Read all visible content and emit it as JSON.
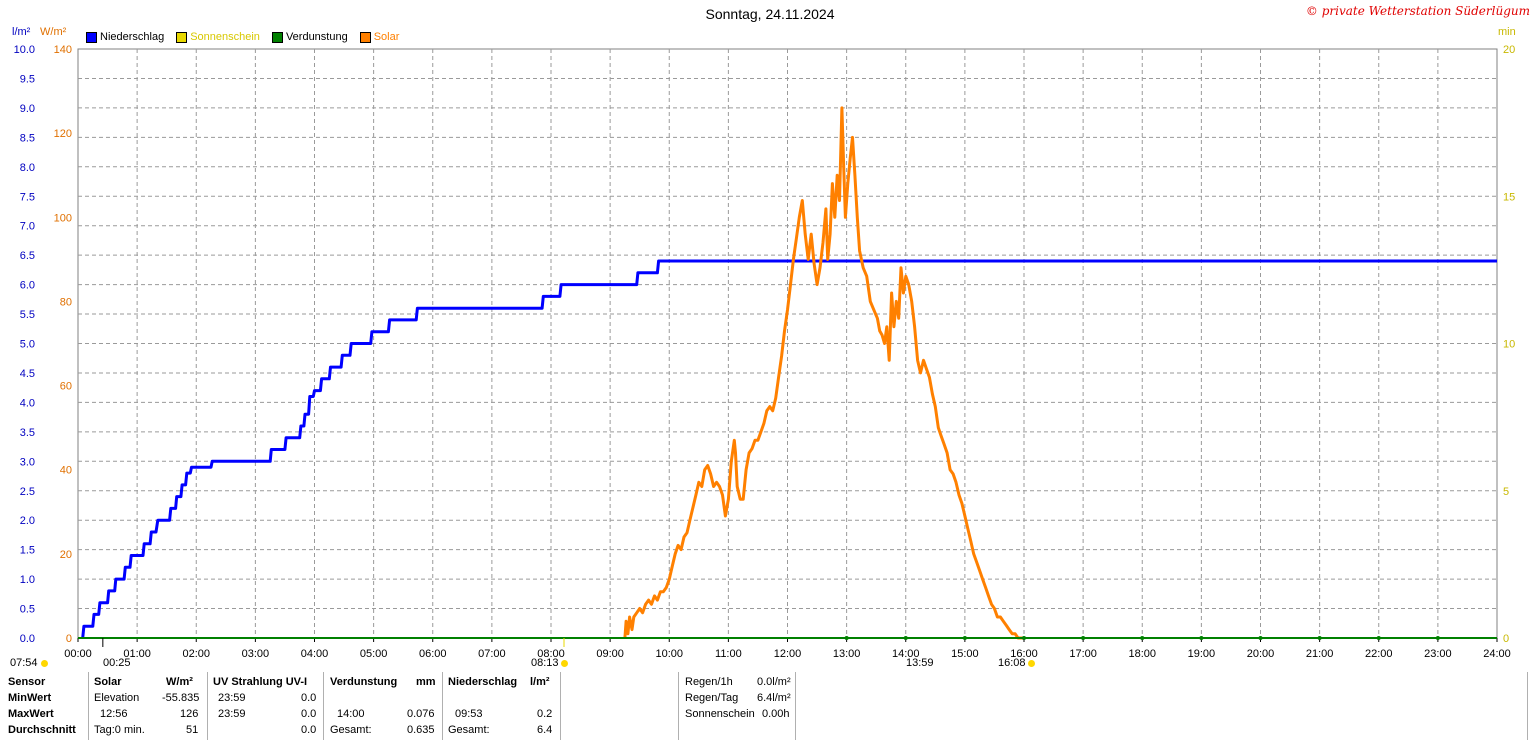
{
  "title": "Sonntag, 24.11.2024",
  "copyright": "© private Wetterstation Süderlügum",
  "units": {
    "left1": "l/m²",
    "left2": "W/m²",
    "right": "min"
  },
  "legend": [
    {
      "label": "Niederschlag",
      "color": "#0000ff",
      "text_color": "#000000"
    },
    {
      "label": "Sonnenschein",
      "color": "#e8d800",
      "text_color": "#d8c800"
    },
    {
      "label": "Verdunstung",
      "color": "#008000",
      "text_color": "#000000"
    },
    {
      "label": "Solar",
      "color": "#ff8000",
      "text_color": "#ff8000"
    }
  ],
  "markers": {
    "sunrise": "07:54",
    "sunset_time": "16:08",
    "m1": "00:25",
    "m2": "08:13",
    "m3": "13:59",
    "m4": "16:08"
  },
  "chart_data": {
    "type": "line",
    "title": "Sonntag, 24.11.2024",
    "x_ticks": [
      "00:00",
      "01:00",
      "02:00",
      "03:00",
      "04:00",
      "05:00",
      "06:00",
      "07:00",
      "08:00",
      "09:00",
      "10:00",
      "11:00",
      "12:00",
      "13:00",
      "14:00",
      "15:00",
      "16:00",
      "17:00",
      "18:00",
      "19:00",
      "20:00",
      "21:00",
      "22:00",
      "23:00",
      "24:00"
    ],
    "y_left_precip": {
      "ticks": [
        "0.0",
        "0.5",
        "1.0",
        "1.5",
        "2.0",
        "2.5",
        "3.0",
        "3.5",
        "4.0",
        "4.5",
        "5.0",
        "5.5",
        "6.0",
        "6.5",
        "7.0",
        "7.5",
        "8.0",
        "8.5",
        "9.0",
        "9.5",
        "10.0"
      ],
      "range": [
        0,
        10
      ]
    },
    "y_left_solar": {
      "ticks": [
        "0",
        "20",
        "40",
        "60",
        "80",
        "100",
        "120",
        "140"
      ],
      "range": [
        0,
        140
      ]
    },
    "y_right_min": {
      "ticks": [
        "0",
        "5",
        "10",
        "15",
        "20"
      ],
      "range": [
        0,
        20
      ]
    },
    "grid": true,
    "series": [
      {
        "name": "Niederschlag",
        "color": "#0000ff",
        "axis": "precip",
        "points": [
          [
            0.08,
            0.0
          ],
          [
            0.1,
            0.2
          ],
          [
            0.25,
            0.2
          ],
          [
            0.27,
            0.4
          ],
          [
            0.35,
            0.4
          ],
          [
            0.37,
            0.6
          ],
          [
            0.5,
            0.6
          ],
          [
            0.52,
            0.8
          ],
          [
            0.62,
            0.8
          ],
          [
            0.64,
            1.0
          ],
          [
            0.78,
            1.0
          ],
          [
            0.8,
            1.2
          ],
          [
            0.88,
            1.2
          ],
          [
            0.9,
            1.4
          ],
          [
            1.1,
            1.4
          ],
          [
            1.12,
            1.6
          ],
          [
            1.22,
            1.6
          ],
          [
            1.24,
            1.8
          ],
          [
            1.32,
            1.8
          ],
          [
            1.35,
            2.0
          ],
          [
            1.55,
            2.0
          ],
          [
            1.57,
            2.2
          ],
          [
            1.65,
            2.2
          ],
          [
            1.67,
            2.4
          ],
          [
            1.74,
            2.4
          ],
          [
            1.76,
            2.6
          ],
          [
            1.82,
            2.6
          ],
          [
            1.84,
            2.8
          ],
          [
            1.9,
            2.8
          ],
          [
            1.92,
            2.9
          ],
          [
            2.25,
            2.9
          ],
          [
            2.27,
            3.0
          ],
          [
            3.25,
            3.0
          ],
          [
            3.27,
            3.2
          ],
          [
            3.5,
            3.2
          ],
          [
            3.52,
            3.4
          ],
          [
            3.75,
            3.4
          ],
          [
            3.77,
            3.6
          ],
          [
            3.82,
            3.6
          ],
          [
            3.84,
            3.8
          ],
          [
            3.9,
            3.8
          ],
          [
            3.92,
            4.1
          ],
          [
            3.98,
            4.1
          ],
          [
            4.0,
            4.2
          ],
          [
            4.1,
            4.2
          ],
          [
            4.12,
            4.4
          ],
          [
            4.25,
            4.4
          ],
          [
            4.27,
            4.6
          ],
          [
            4.45,
            4.6
          ],
          [
            4.47,
            4.8
          ],
          [
            4.6,
            4.8
          ],
          [
            4.62,
            5.0
          ],
          [
            4.95,
            5.0
          ],
          [
            4.97,
            5.2
          ],
          [
            5.25,
            5.2
          ],
          [
            5.27,
            5.4
          ],
          [
            5.72,
            5.4
          ],
          [
            5.74,
            5.6
          ],
          [
            7.85,
            5.6
          ],
          [
            7.87,
            5.8
          ],
          [
            8.15,
            5.8
          ],
          [
            8.17,
            6.0
          ],
          [
            9.45,
            6.0
          ],
          [
            9.47,
            6.2
          ],
          [
            9.8,
            6.2
          ],
          [
            9.82,
            6.4
          ],
          [
            24.0,
            6.4
          ]
        ]
      },
      {
        "name": "Solar",
        "color": "#ff8000",
        "axis": "solar",
        "points": [
          [
            9.25,
            0
          ],
          [
            9.27,
            4
          ],
          [
            9.3,
            1
          ],
          [
            9.33,
            5
          ],
          [
            9.37,
            2
          ],
          [
            9.4,
            5
          ],
          [
            9.45,
            6
          ],
          [
            9.5,
            7
          ],
          [
            9.55,
            6
          ],
          [
            9.6,
            8
          ],
          [
            9.65,
            9
          ],
          [
            9.7,
            8
          ],
          [
            9.75,
            10
          ],
          [
            9.8,
            9
          ],
          [
            9.85,
            11
          ],
          [
            9.9,
            11
          ],
          [
            9.95,
            12
          ],
          [
            10.0,
            14
          ],
          [
            10.05,
            17
          ],
          [
            10.1,
            20
          ],
          [
            10.15,
            22
          ],
          [
            10.2,
            21
          ],
          [
            10.25,
            24
          ],
          [
            10.3,
            25
          ],
          [
            10.35,
            28
          ],
          [
            10.4,
            31
          ],
          [
            10.45,
            34
          ],
          [
            10.5,
            37
          ],
          [
            10.55,
            36
          ],
          [
            10.6,
            40
          ],
          [
            10.65,
            41
          ],
          [
            10.7,
            39
          ],
          [
            10.75,
            36
          ],
          [
            10.8,
            37
          ],
          [
            10.85,
            36
          ],
          [
            10.9,
            34
          ],
          [
            10.95,
            29
          ],
          [
            11.0,
            33
          ],
          [
            11.05,
            42
          ],
          [
            11.1,
            47
          ],
          [
            11.12,
            44
          ],
          [
            11.15,
            36
          ],
          [
            11.2,
            33
          ],
          [
            11.25,
            33
          ],
          [
            11.3,
            40
          ],
          [
            11.35,
            44
          ],
          [
            11.4,
            45
          ],
          [
            11.45,
            47
          ],
          [
            11.5,
            47
          ],
          [
            11.55,
            49
          ],
          [
            11.6,
            51
          ],
          [
            11.65,
            54
          ],
          [
            11.7,
            55
          ],
          [
            11.75,
            54
          ],
          [
            11.8,
            57
          ],
          [
            11.85,
            62
          ],
          [
            11.9,
            67
          ],
          [
            11.95,
            73
          ],
          [
            12.0,
            78
          ],
          [
            12.05,
            84
          ],
          [
            12.1,
            90
          ],
          [
            12.15,
            95
          ],
          [
            12.2,
            100
          ],
          [
            12.25,
            104
          ],
          [
            12.3,
            96
          ],
          [
            12.35,
            90
          ],
          [
            12.4,
            96
          ],
          [
            12.45,
            89
          ],
          [
            12.5,
            84
          ],
          [
            12.55,
            88
          ],
          [
            12.6,
            94
          ],
          [
            12.65,
            102
          ],
          [
            12.68,
            90
          ],
          [
            12.72,
            96
          ],
          [
            12.76,
            108
          ],
          [
            12.8,
            100
          ],
          [
            12.84,
            110
          ],
          [
            12.88,
            104
          ],
          [
            12.92,
            126
          ],
          [
            12.95,
            112
          ],
          [
            12.98,
            100
          ],
          [
            13.02,
            108
          ],
          [
            13.06,
            114
          ],
          [
            13.1,
            119
          ],
          [
            13.14,
            110
          ],
          [
            13.18,
            100
          ],
          [
            13.22,
            92
          ],
          [
            13.28,
            88
          ],
          [
            13.34,
            86
          ],
          [
            13.4,
            80
          ],
          [
            13.46,
            78
          ],
          [
            13.52,
            76
          ],
          [
            13.56,
            73
          ],
          [
            13.6,
            72
          ],
          [
            13.64,
            70
          ],
          [
            13.68,
            74
          ],
          [
            13.72,
            66
          ],
          [
            13.76,
            82
          ],
          [
            13.8,
            74
          ],
          [
            13.84,
            80
          ],
          [
            13.88,
            76
          ],
          [
            13.92,
            88
          ],
          [
            13.96,
            82
          ],
          [
            14.0,
            86
          ],
          [
            14.05,
            84
          ],
          [
            14.1,
            80
          ],
          [
            14.15,
            74
          ],
          [
            14.2,
            66
          ],
          [
            14.25,
            63
          ],
          [
            14.3,
            66
          ],
          [
            14.35,
            64
          ],
          [
            14.4,
            62
          ],
          [
            14.45,
            58
          ],
          [
            14.5,
            55
          ],
          [
            14.55,
            50
          ],
          [
            14.6,
            48
          ],
          [
            14.65,
            46
          ],
          [
            14.7,
            44
          ],
          [
            14.75,
            40
          ],
          [
            14.8,
            39
          ],
          [
            14.85,
            37
          ],
          [
            14.9,
            34
          ],
          [
            14.95,
            32
          ],
          [
            15.0,
            29
          ],
          [
            15.05,
            26
          ],
          [
            15.1,
            23
          ],
          [
            15.15,
            20
          ],
          [
            15.2,
            18
          ],
          [
            15.25,
            16
          ],
          [
            15.3,
            14
          ],
          [
            15.35,
            12
          ],
          [
            15.4,
            10
          ],
          [
            15.45,
            8
          ],
          [
            15.5,
            7
          ],
          [
            15.55,
            5
          ],
          [
            15.6,
            5
          ],
          [
            15.65,
            4
          ],
          [
            15.7,
            3
          ],
          [
            15.75,
            2
          ],
          [
            15.8,
            1
          ],
          [
            15.85,
            1
          ],
          [
            15.9,
            0
          ],
          [
            16.02,
            0
          ]
        ]
      },
      {
        "name": "Verdunstung",
        "color": "#008000",
        "axis": "solar",
        "points": [
          [
            0.0,
            0
          ],
          [
            24.0,
            0
          ]
        ]
      }
    ]
  },
  "table": {
    "col1": {
      "h": "Sensor",
      "r1": "MinWert",
      "r2": "MaxWert",
      "r3": "Durchschnitt"
    },
    "solar": {
      "h": "Solar",
      "unit": "W/m²",
      "r1a": "Elevation",
      "r1b": "-55.835",
      "r2a": "12:56",
      "r2b": "126",
      "r3a": "Tag:0 min.",
      "r3b": "51"
    },
    "uv": {
      "h": "UV Strahlung UV-I",
      "r1a": "23:59",
      "r1b": "0.0",
      "r2a": "23:59",
      "r2b": "0.0",
      "r3b": "0.0"
    },
    "verd": {
      "h": "Verdunstung",
      "unit": "mm",
      "r2a": "14:00",
      "r2b": "0.076",
      "r3a": "Gesamt:",
      "r3b": "0.635"
    },
    "nied": {
      "h": "Niederschlag",
      "unit": "l/m²",
      "r2a": "09:53",
      "r2b": "0.2",
      "r3a": "Gesamt:",
      "r3b": "6.4"
    },
    "summary": {
      "r0a": "Regen/1h",
      "r0b": "0.0l/m²",
      "r1a": "Regen/Tag",
      "r1b": "6.4l/m²",
      "r2a": "Sonnenschein",
      "r2b": "0.00h"
    }
  }
}
